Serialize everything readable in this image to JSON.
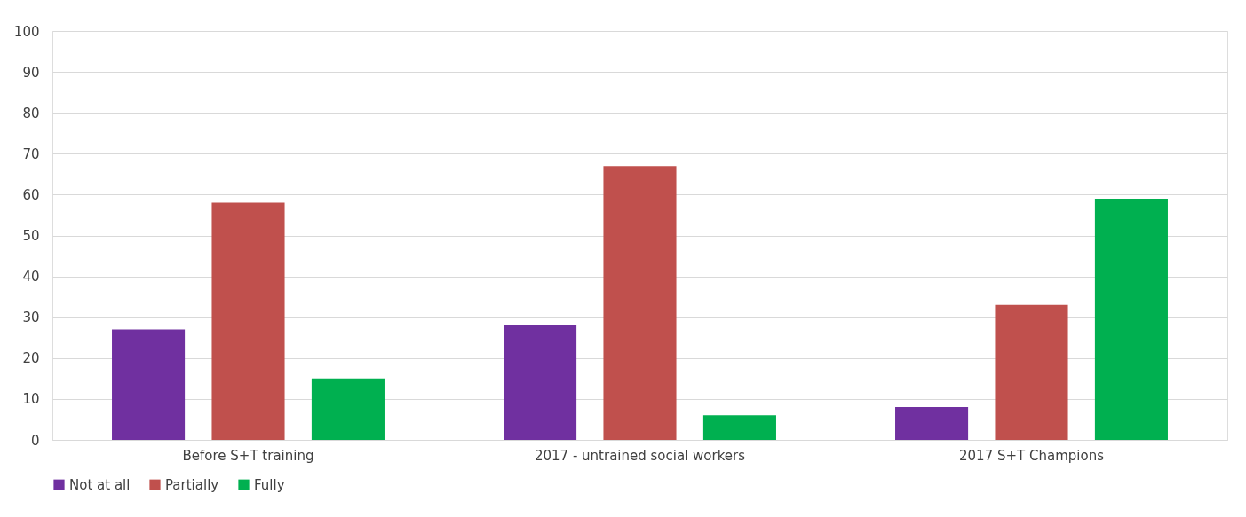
{
  "chart_data": {
    "type": "bar",
    "categories": [
      "Before S+T training",
      "2017 - untrained social workers",
      "2017 S+T Champions"
    ],
    "series": [
      {
        "name": "Not at all",
        "color": "#7030a0",
        "values": [
          27,
          28,
          8
        ]
      },
      {
        "name": "Partially",
        "color": "#c0504d",
        "values": [
          58,
          67,
          33
        ]
      },
      {
        "name": "Fully",
        "color": "#00b050",
        "values": [
          15,
          6,
          59
        ]
      }
    ],
    "ylim": [
      0,
      100
    ],
    "yticks": [
      0,
      10,
      20,
      30,
      40,
      50,
      60,
      70,
      80,
      90,
      100
    ],
    "grid": "y",
    "legend": "bottom"
  }
}
